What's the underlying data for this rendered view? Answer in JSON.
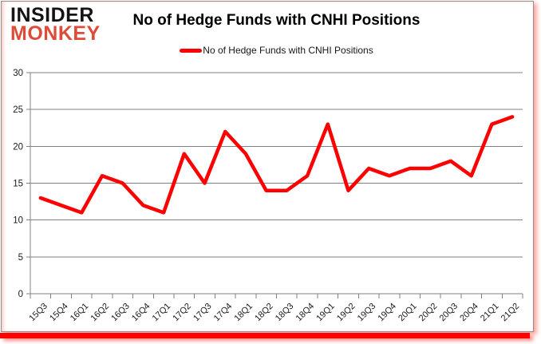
{
  "logo": {
    "line1": "INSIDER",
    "line2": "MONKEY"
  },
  "title": "No of Hedge Funds with CNHI Positions",
  "legend": {
    "label": "No of Hedge Funds with CNHI Positions"
  },
  "colors": {
    "series_red": "#ff0000",
    "logo_black": "#141414",
    "logo_red": "#dd4b39",
    "gridline_gray": "#808080",
    "axis_text": "#1a1a1a",
    "frame_bar_red": "#ff0303"
  },
  "chart_data": {
    "type": "line",
    "title": "No of Hedge Funds with CNHI Positions",
    "categories": [
      "15Q3",
      "15Q4",
      "16Q1",
      "16Q2",
      "16Q3",
      "16Q4",
      "17Q1",
      "17Q2",
      "17Q3",
      "17Q4",
      "18Q1",
      "18Q2",
      "18Q3",
      "18Q4",
      "19Q1",
      "19Q2",
      "19Q3",
      "19Q4",
      "20Q1",
      "20Q2",
      "20Q3",
      "20Q4",
      "21Q1",
      "21Q2"
    ],
    "series": [
      {
        "name": "No of Hedge Funds with CNHI Positions",
        "color": "#ff0000",
        "values": [
          13,
          12,
          11,
          16,
          15,
          12,
          11,
          19,
          15,
          22,
          19,
          14,
          14,
          16,
          23,
          14,
          17,
          16,
          17,
          17,
          18,
          16,
          23,
          24
        ]
      }
    ],
    "xlabel": "",
    "ylabel": "",
    "ylim": [
      0,
      30
    ],
    "yticks": [
      0,
      5,
      10,
      15,
      20,
      25,
      30
    ],
    "grid": true,
    "legend_position": "top-center",
    "x_label_rotation": -45
  }
}
